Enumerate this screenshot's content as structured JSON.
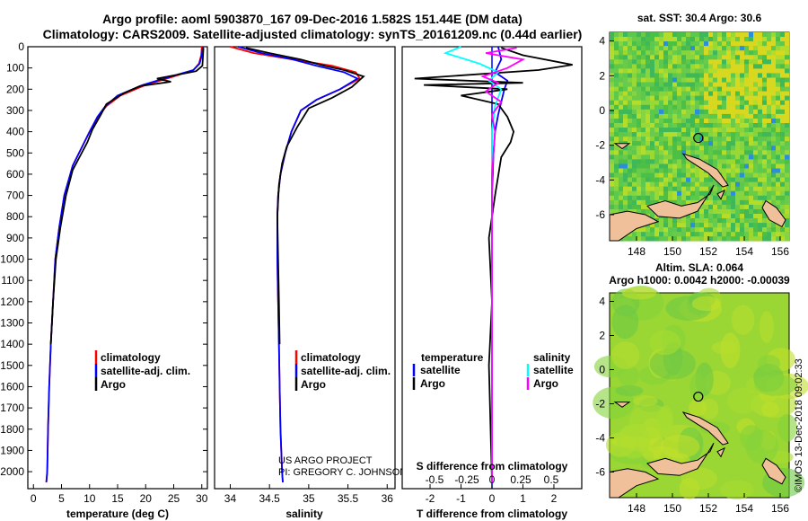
{
  "header": {
    "line1": "Argo profile: aoml 5903870_167 09-Dec-2016 1.582S 151.44E (DM data)",
    "line2": "Climatology: CARS2009. Satellite-adjusted climatology: synTS_20161209.nc (0.44d earlier)"
  },
  "colors": {
    "climatology": "#ff0000",
    "satellite": "#0000ff",
    "argo": "#000000",
    "sal_satellite": "#00ffff",
    "sal_argo": "#ff00ff",
    "land": "#f0c09a"
  },
  "chart_data": [
    {
      "type": "line",
      "name": "temperature-profile",
      "xlabel": "temperature (deg C)",
      "ylabel": "",
      "xlim": [
        -1,
        31
      ],
      "ylim": [
        2080,
        0
      ],
      "xticks": [
        0,
        5,
        10,
        15,
        20,
        25,
        30
      ],
      "yticks": [
        0,
        100,
        200,
        300,
        400,
        500,
        600,
        700,
        800,
        900,
        1000,
        1100,
        1200,
        1300,
        1400,
        1500,
        1600,
        1700,
        1800,
        1900,
        2000
      ],
      "series": [
        {
          "name": "climatology",
          "color": "#ff0000",
          "x": [
            30.0,
            29.9,
            29.5,
            28.5,
            25.0,
            20.0,
            15.5,
            13.0,
            11.5,
            10.0,
            8.5,
            7.0,
            5.5,
            4.6,
            3.9,
            3.5,
            3.1,
            2.8,
            2.6,
            2.45,
            2.3
          ],
          "y": [
            0,
            40,
            80,
            110,
            140,
            180,
            230,
            280,
            330,
            400,
            480,
            560,
            700,
            850,
            1000,
            1200,
            1400,
            1600,
            1800,
            2000,
            2050
          ]
        },
        {
          "name": "satellite-adj. clim.",
          "color": "#0000ff",
          "x": [
            30.2,
            30.0,
            29.6,
            28.5,
            24.5,
            19.5,
            15.0,
            12.8,
            11.4,
            10.0,
            8.5,
            7.0,
            5.5,
            4.6,
            3.9,
            3.5,
            3.1,
            2.8,
            2.6,
            2.45,
            2.3
          ],
          "y": [
            0,
            40,
            80,
            110,
            140,
            180,
            230,
            280,
            330,
            400,
            480,
            560,
            700,
            850,
            1000,
            1200,
            1400,
            1600,
            1800,
            2000,
            2050
          ]
        },
        {
          "name": "Argo",
          "color": "#000000",
          "x": [
            30.3,
            30.2,
            30.1,
            29.0,
            27.0,
            22.0,
            24.5,
            19.0,
            16.0,
            13.0,
            12.0,
            10.5,
            9.6,
            8.2,
            7.0,
            5.8,
            4.8,
            4.0,
            3.5,
            3.1
          ],
          "y": [
            5,
            50,
            90,
            115,
            125,
            150,
            165,
            185,
            220,
            270,
            320,
            390,
            450,
            520,
            580,
            700,
            850,
            1000,
            1200,
            1400
          ]
        }
      ]
    },
    {
      "type": "line",
      "name": "salinity-profile",
      "xlabel": "salinity",
      "xlim": [
        33.8,
        36.1
      ],
      "ylim": [
        2080,
        0
      ],
      "xticks": [
        34,
        34.5,
        35,
        35.5,
        36
      ],
      "series": [
        {
          "name": "climatology",
          "color": "#ff0000",
          "x": [
            34.0,
            34.3,
            34.8,
            35.3,
            35.6,
            35.65,
            35.4,
            35.1,
            34.9,
            34.78,
            34.7,
            34.64,
            34.61,
            34.6,
            34.6,
            34.61,
            34.62,
            34.63,
            34.64,
            34.66,
            34.67
          ],
          "y": [
            0,
            30,
            60,
            90,
            120,
            150,
            200,
            250,
            300,
            400,
            500,
            600,
            700,
            800,
            1000,
            1200,
            1400,
            1600,
            1800,
            2000,
            2050
          ]
        },
        {
          "name": "satellite-adj. clim.",
          "color": "#0000ff",
          "x": [
            34.1,
            34.4,
            34.8,
            35.1,
            35.45,
            35.62,
            35.4,
            35.1,
            34.9,
            34.78,
            34.7,
            34.64,
            34.61,
            34.6,
            34.6,
            34.61,
            34.62,
            34.63,
            34.64,
            34.66,
            34.67
          ],
          "y": [
            0,
            30,
            60,
            90,
            120,
            150,
            200,
            250,
            300,
            400,
            500,
            600,
            700,
            800,
            1000,
            1200,
            1400,
            1600,
            1800,
            2000,
            2050
          ]
        },
        {
          "name": "Argo",
          "color": "#000000",
          "x": [
            34.2,
            34.5,
            34.9,
            35.2,
            35.45,
            35.7,
            35.55,
            35.3,
            35.0,
            34.85,
            34.72,
            34.66,
            34.62,
            34.6,
            34.61,
            34.62,
            34.63
          ],
          "y": [
            5,
            30,
            60,
            90,
            110,
            140,
            190,
            240,
            290,
            380,
            470,
            550,
            650,
            800,
            1000,
            1200,
            1400
          ]
        }
      ]
    },
    {
      "type": "line",
      "name": "difference-profile",
      "xlabel": "T difference from climatology",
      "xlim": [
        -2.9,
        2.9
      ],
      "ylim": [
        2080,
        0
      ],
      "xticks": [
        -2,
        -1,
        0,
        1,
        2
      ],
      "secondary_axis_label": "S difference from climatology",
      "secondary_ticks": [
        "-0.5",
        "-0.25",
        "0",
        "0.25",
        "0.5"
      ],
      "series": [
        {
          "name": "temperature satellite",
          "color": "#0000ff",
          "x": [
            0.2,
            0.3,
            0.1,
            0.5,
            0.4,
            0.3,
            0.2,
            0.1,
            0.05,
            0.0,
            0.0,
            0.0,
            0.0,
            0.0
          ],
          "y": [
            0,
            60,
            120,
            160,
            200,
            260,
            320,
            400,
            500,
            700,
            900,
            1200,
            1600,
            2050
          ]
        },
        {
          "name": "temperature Argo",
          "color": "#000000",
          "x": [
            0.3,
            1.0,
            2.6,
            1.5,
            -2.5,
            1.0,
            -2.2,
            0.5,
            -1.0,
            0.2,
            0.5,
            0.7,
            0.6,
            0.3,
            0.1,
            -0.1,
            0.0,
            -0.1,
            0.0
          ],
          "y": [
            5,
            40,
            85,
            110,
            150,
            170,
            180,
            200,
            230,
            270,
            330,
            400,
            450,
            520,
            700,
            900,
            1200,
            1500,
            2050
          ]
        },
        {
          "name": "salinity satellite",
          "color": "#00ffff",
          "x": [
            -1.0,
            -1.5,
            -0.4,
            0.2,
            -0.1,
            0.3,
            0.1,
            0.0,
            0.0,
            0.0,
            0.0,
            0.0,
            0.0
          ],
          "y": [
            0,
            30,
            80,
            120,
            160,
            200,
            280,
            400,
            600,
            900,
            1200,
            1600,
            2050
          ]
        },
        {
          "name": "salinity Argo",
          "color": "#ff00ff",
          "x": [
            0.8,
            -0.2,
            1.0,
            0.5,
            -0.3,
            0.2,
            -0.2,
            0.3,
            0.0,
            0.1,
            0.0,
            0.0
          ],
          "y": [
            5,
            30,
            60,
            100,
            140,
            170,
            210,
            260,
            320,
            400,
            600,
            2050
          ]
        }
      ]
    }
  ],
  "panels": {
    "temperature": {
      "legend": [
        "climatology",
        "satellite-adj. clim.",
        "Argo"
      ]
    },
    "salinity": {
      "legend": [
        "climatology",
        "satellite-adj. clim.",
        "Argo"
      ],
      "credit1": "US ARGO PROJECT",
      "credit2": "PI: GREGORY C. JOHNSON"
    },
    "difference": {
      "legend_left_title": "temperature",
      "legend_right_title": "salinity",
      "legend_satellite": "satellite",
      "legend_argo": "Argo"
    }
  },
  "maps": {
    "sst": {
      "title": "sat. SST: 30.4 Argo: 30.6",
      "yticks": [
        "4",
        "2",
        "0",
        "-2",
        "-4",
        "-6"
      ],
      "xticks": [
        "148",
        "150",
        "152",
        "154",
        "156"
      ]
    },
    "sla": {
      "title1": "Altim. SLA: 0.064",
      "title2": "Argo h1000: 0.0042 h2000: -0.00039",
      "yticks": [
        "4",
        "2",
        "0",
        "-2",
        "-4",
        "-6"
      ],
      "xticks": [
        "148",
        "150",
        "152",
        "154",
        "156"
      ]
    },
    "float_position": {
      "lon": 151.44,
      "lat": -1.582
    }
  },
  "footer": {
    "stamp": "©IMOS 13-Dec-2018 09:02:33"
  }
}
